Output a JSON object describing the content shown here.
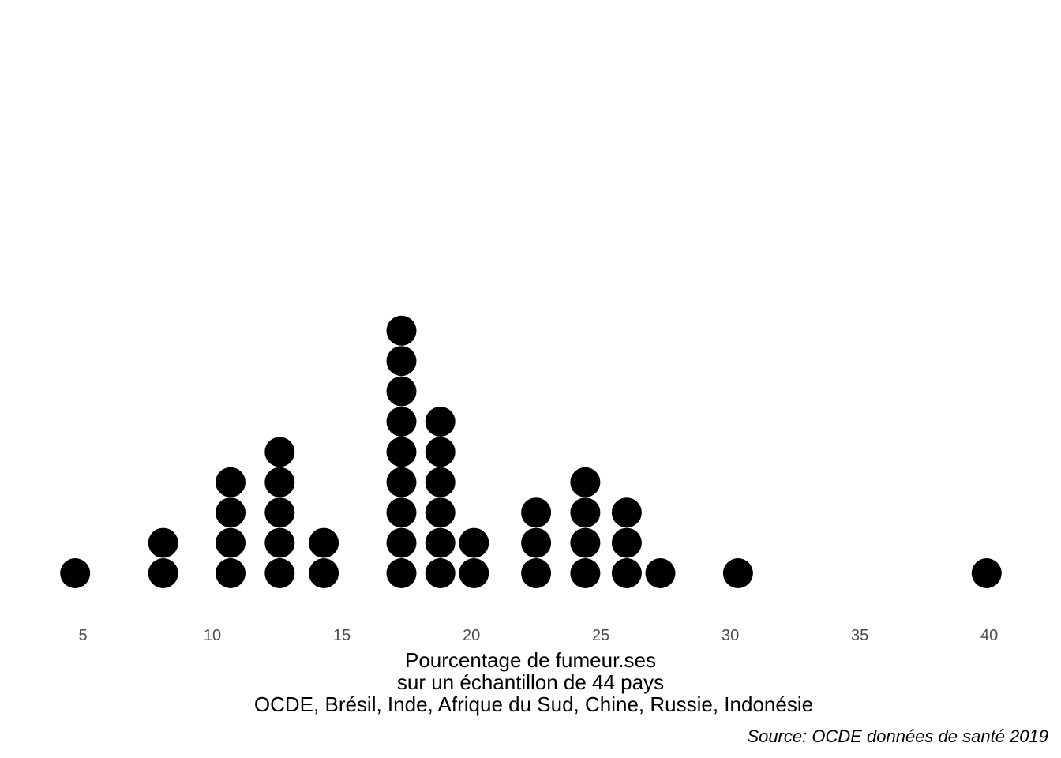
{
  "chart_data": {
    "type": "scatter",
    "subtype": "dot plot",
    "x_values": [
      4.7,
      8.1,
      8.1,
      10.7,
      10.7,
      10.7,
      10.7,
      12.6,
      12.6,
      12.6,
      12.6,
      12.6,
      14.3,
      14.3,
      17.3,
      17.3,
      17.3,
      17.3,
      17.3,
      17.3,
      17.3,
      17.3,
      17.3,
      18.8,
      18.8,
      18.8,
      18.8,
      18.8,
      18.8,
      20.1,
      20.1,
      22.5,
      22.5,
      22.5,
      24.4,
      24.4,
      24.4,
      24.4,
      26.0,
      26.0,
      26.0,
      27.3,
      30.3,
      39.9
    ],
    "xlim": [
      3.2,
      41.4
    ],
    "xticks": [
      5,
      10,
      15,
      20,
      25,
      30,
      35,
      40
    ],
    "xtick_labels": [
      "5",
      "10",
      "15",
      "20",
      "25",
      "30",
      "35",
      "40"
    ],
    "xlabel_lines": [
      "Pourcentage de fumeur.ses",
      "sur un échantillon de 44 pays",
      "OCDE, Brésil, Inde, Afrique du Sud, Chine, Russie, Indonésie"
    ],
    "caption": "Source: OCDE données de santé 2019",
    "grid": false,
    "legend": "none",
    "colors": {
      "dot": "#000000",
      "tick_text": "#4d4d4d",
      "title_text": "#000000",
      "background": "#ffffff"
    }
  }
}
